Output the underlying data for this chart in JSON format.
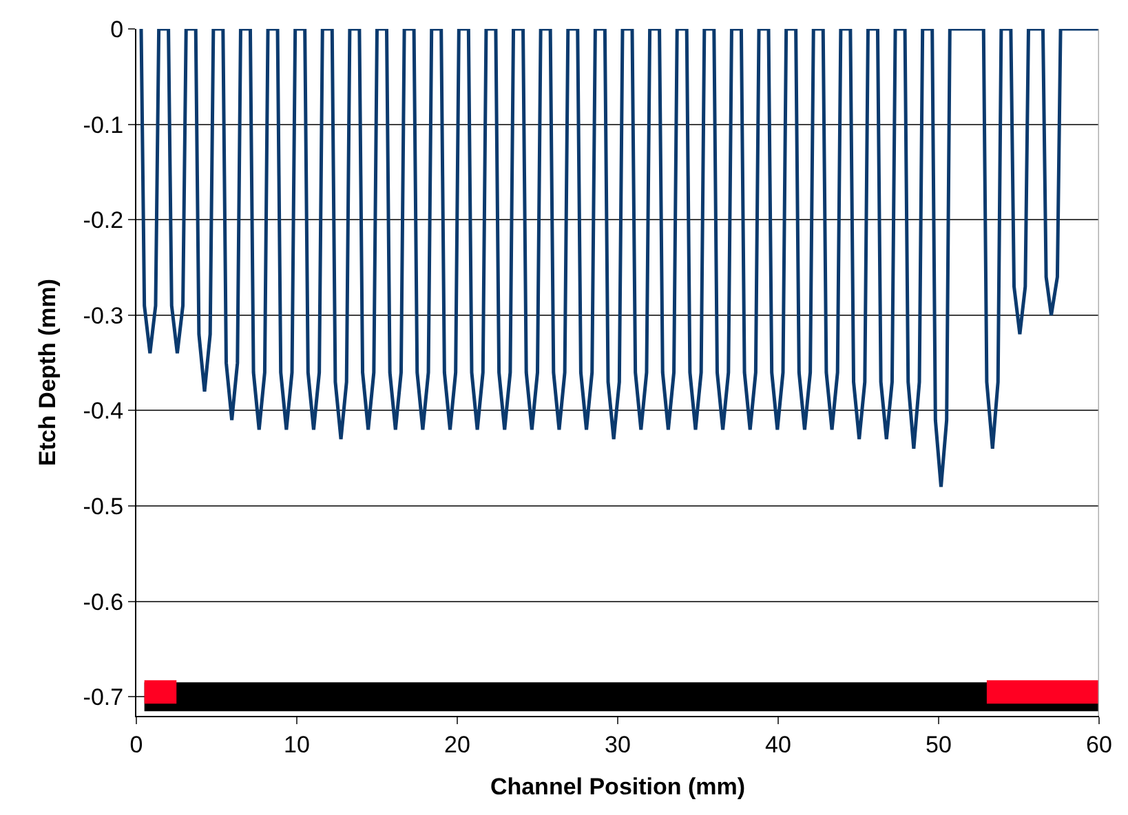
{
  "chart_data": {
    "type": "line",
    "xlabel": "Channel Position (mm)",
    "ylabel": "Etch Depth (mm)",
    "xlim": [
      0,
      60
    ],
    "xticks": [
      0,
      10,
      20,
      30,
      40,
      50,
      60
    ],
    "ylim": [
      -0.72,
      0
    ],
    "yticks": [
      -0.7,
      -0.6,
      -0.5,
      -0.4,
      -0.3,
      -0.2,
      -0.1,
      0
    ],
    "grid": "y",
    "marker": "none",
    "line_style": "solid",
    "series": [
      {
        "color": "#0b3a6e",
        "x": [
          0.3,
          0.5,
          0.85,
          1.2,
          1.4,
          2.0,
          2.2,
          2.55,
          2.9,
          3.1,
          3.7,
          3.9,
          4.25,
          4.6,
          4.8,
          5.4,
          5.6,
          5.95,
          6.3,
          6.5,
          7.1,
          7.3,
          7.65,
          8.0,
          8.2,
          8.8,
          9.0,
          9.35,
          9.7,
          9.9,
          10.5,
          10.7,
          11.05,
          11.4,
          11.6,
          12.2,
          12.4,
          12.75,
          13.1,
          13.3,
          13.9,
          14.1,
          14.45,
          14.8,
          15.0,
          15.6,
          15.8,
          16.15,
          16.5,
          16.7,
          17.3,
          17.5,
          17.85,
          18.2,
          18.4,
          19.0,
          19.2,
          19.55,
          19.9,
          20.1,
          20.7,
          20.9,
          21.25,
          21.6,
          21.8,
          22.4,
          22.6,
          22.95,
          23.3,
          23.5,
          24.1,
          24.3,
          24.65,
          25.0,
          25.2,
          25.8,
          26.0,
          26.35,
          26.7,
          26.9,
          27.5,
          27.7,
          28.05,
          28.4,
          28.6,
          29.2,
          29.4,
          29.75,
          30.1,
          30.3,
          30.9,
          31.1,
          31.45,
          31.8,
          32.0,
          32.6,
          32.8,
          33.15,
          33.5,
          33.7,
          34.3,
          34.5,
          34.85,
          35.2,
          35.4,
          36.0,
          36.2,
          36.55,
          36.9,
          37.1,
          37.7,
          37.9,
          38.25,
          38.6,
          38.8,
          39.4,
          39.6,
          39.95,
          40.3,
          40.5,
          41.1,
          41.3,
          41.65,
          42.0,
          42.2,
          42.8,
          43.0,
          43.35,
          43.7,
          43.9,
          44.5,
          44.7,
          45.05,
          45.4,
          45.6,
          46.2,
          46.4,
          46.75,
          47.1,
          47.3,
          47.9,
          48.1,
          48.45,
          48.8,
          49.0,
          49.6,
          49.8,
          50.15,
          50.5,
          50.7,
          52.8,
          53.0,
          53.36,
          53.7,
          53.9,
          54.5,
          54.7,
          55.06,
          55.4,
          55.6,
          56.5,
          56.7,
          57.02,
          57.4,
          57.6,
          60.0
        ],
        "values": [
          0,
          -0.29,
          -0.34,
          -0.29,
          0,
          0,
          -0.29,
          -0.34,
          -0.29,
          0,
          0,
          -0.32,
          -0.38,
          -0.32,
          0,
          0,
          -0.35,
          -0.41,
          -0.35,
          0,
          0,
          -0.36,
          -0.42,
          -0.36,
          0,
          0,
          -0.36,
          -0.42,
          -0.36,
          0,
          0,
          -0.36,
          -0.42,
          -0.36,
          0,
          0,
          -0.37,
          -0.43,
          -0.37,
          0,
          0,
          -0.36,
          -0.42,
          -0.36,
          0,
          0,
          -0.36,
          -0.42,
          -0.36,
          0,
          0,
          -0.36,
          -0.42,
          -0.36,
          0,
          0,
          -0.36,
          -0.42,
          -0.36,
          0,
          0,
          -0.36,
          -0.42,
          -0.36,
          0,
          0,
          -0.36,
          -0.42,
          -0.36,
          0,
          0,
          -0.36,
          -0.42,
          -0.36,
          0,
          0,
          -0.36,
          -0.42,
          -0.36,
          0,
          0,
          -0.36,
          -0.42,
          -0.36,
          0,
          0,
          -0.37,
          -0.43,
          -0.37,
          0,
          0,
          -0.36,
          -0.42,
          -0.36,
          0,
          0,
          -0.36,
          -0.42,
          -0.36,
          0,
          0,
          -0.36,
          -0.42,
          -0.36,
          0,
          0,
          -0.36,
          -0.42,
          -0.36,
          0,
          0,
          -0.36,
          -0.42,
          -0.36,
          0,
          0,
          -0.36,
          -0.42,
          -0.36,
          0,
          0,
          -0.36,
          -0.42,
          -0.36,
          0,
          0,
          -0.36,
          -0.42,
          -0.36,
          0,
          0,
          -0.37,
          -0.43,
          -0.37,
          0,
          0,
          -0.37,
          -0.43,
          -0.37,
          0,
          0,
          -0.37,
          -0.44,
          -0.37,
          0,
          0,
          -0.41,
          -0.48,
          -0.41,
          0,
          0,
          -0.37,
          -0.44,
          -0.37,
          0,
          0,
          -0.27,
          -0.32,
          -0.27,
          0,
          0,
          -0.26,
          -0.3,
          -0.26,
          0,
          0
        ]
      },
      {
        "color": "#000000",
        "x": [
          0.5,
          60
        ],
        "values": [
          -0.7,
          -0.7
        ]
      },
      {
        "color": "#ff0022",
        "x": [
          0.5,
          2.5
        ],
        "values": [
          -0.695,
          -0.695
        ]
      },
      {
        "color": "#ff0022",
        "x": [
          53,
          60
        ],
        "values": [
          -0.695,
          -0.695
        ]
      }
    ]
  }
}
